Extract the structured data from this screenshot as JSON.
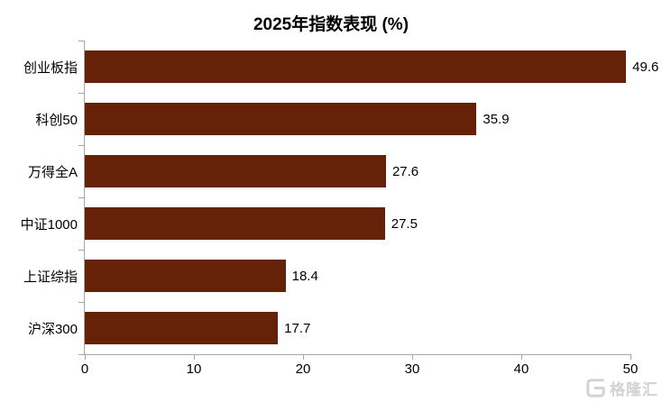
{
  "chart_data": {
    "type": "bar",
    "orientation": "horizontal",
    "title": "2025年指数表现 (%)",
    "categories": [
      "创业板指",
      "科创50",
      "万得全A",
      "中证1000",
      "上证综指",
      "沪深300"
    ],
    "values": [
      49.6,
      35.9,
      27.6,
      27.5,
      18.4,
      17.7
    ],
    "value_labels": [
      "49.6",
      "35.9",
      "27.6",
      "27.5",
      "18.4",
      "17.7"
    ],
    "xlabel": "",
    "ylabel": "",
    "xlim": [
      0,
      50
    ],
    "x_ticks": [
      0,
      10,
      20,
      30,
      40,
      50
    ],
    "grid": false,
    "legend": false,
    "bar_color": "#662208",
    "axis_color": "#a6a6a6",
    "text_color": "#000000"
  },
  "watermark": {
    "logo": "gelonghui-logo",
    "text": "格隆汇",
    "color": "#d2d2d2"
  }
}
